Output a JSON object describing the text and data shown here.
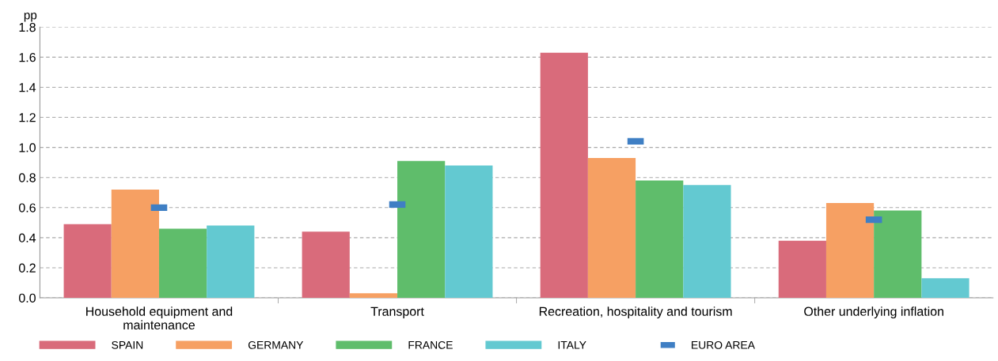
{
  "chart_data": {
    "type": "bar",
    "ylabel": "pp",
    "categories": [
      "Household equipment and\nmaintenance",
      "Transport",
      "Recreation, hospitality and tourism",
      "Other underlying inflation"
    ],
    "series": [
      {
        "name": "SPAIN",
        "color": "#d96b7b",
        "values": [
          0.49,
          0.44,
          1.63,
          0.38
        ]
      },
      {
        "name": "GERMANY",
        "color": "#f6a063",
        "values": [
          0.72,
          0.03,
          0.93,
          0.63
        ]
      },
      {
        "name": "FRANCE",
        "color": "#5fbd6b",
        "values": [
          0.46,
          0.91,
          0.78,
          0.58
        ]
      },
      {
        "name": "ITALY",
        "color": "#63c9d1",
        "values": [
          0.48,
          0.88,
          0.75,
          0.13
        ]
      },
      {
        "name": "EURO AREA",
        "color": "#3f7fc4",
        "type": "scatter",
        "values": [
          0.6,
          0.62,
          1.04,
          0.52
        ]
      }
    ],
    "ylim": [
      0,
      1.8
    ],
    "yticks": [
      {
        "value": 0,
        "label": "0.0"
      },
      {
        "value": 0.2,
        "label": "0.2"
      },
      {
        "value": 0.4,
        "label": "0.4"
      },
      {
        "value": 0.6,
        "label": "0.6"
      },
      {
        "value": 0.8,
        "label": "0.8"
      },
      {
        "value": 1.0,
        "label": "1.0"
      },
      {
        "value": 1.2,
        "label": "1.2"
      },
      {
        "value": 1.4,
        "label": "1.4"
      },
      {
        "value": 1.6,
        "label": "1.6"
      },
      {
        "value": 1.8,
        "label": "1.8"
      }
    ],
    "grid": "y",
    "legend": "bottom"
  }
}
